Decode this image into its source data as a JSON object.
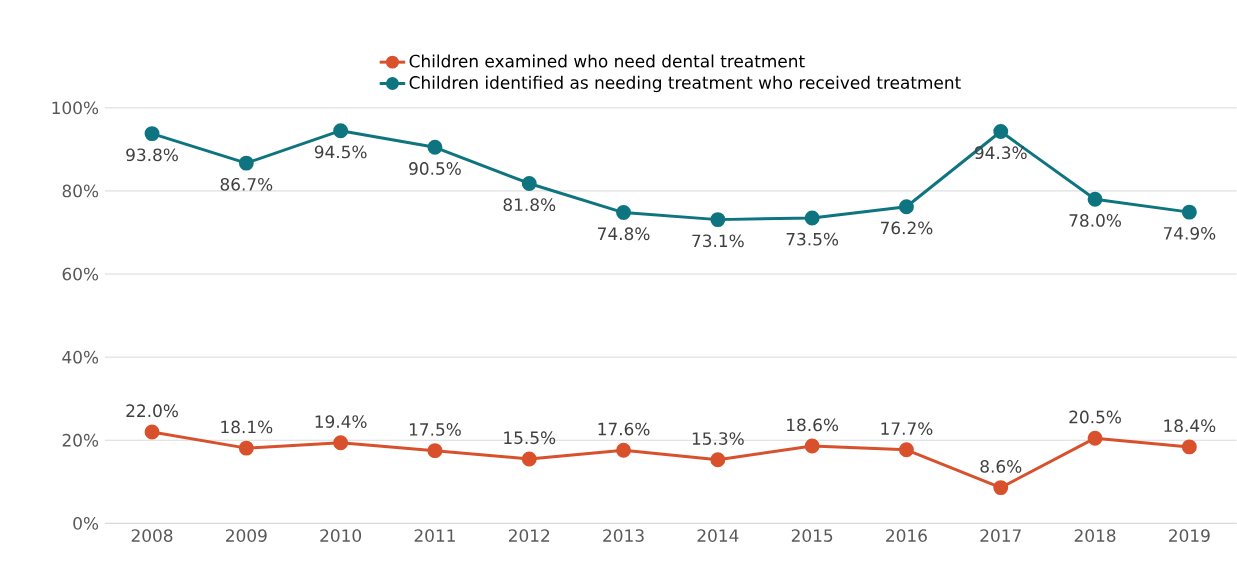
{
  "chart_data": {
    "type": "line",
    "categories": [
      "2008",
      "2009",
      "2010",
      "2011",
      "2012",
      "2013",
      "2014",
      "2015",
      "2016",
      "2017",
      "2018",
      "2019"
    ],
    "series": [
      {
        "name": "Children examined who need dental treatment",
        "color": "#d9512c",
        "values": [
          22.0,
          18.1,
          19.4,
          17.5,
          15.5,
          17.6,
          15.3,
          18.6,
          17.7,
          8.6,
          20.5,
          18.4
        ],
        "value_labels": [
          "22.0%",
          "18.1%",
          "19.4%",
          "17.5%",
          "15.5%",
          "17.6%",
          "15.3%",
          "18.6%",
          "17.7%",
          "8.6%",
          "20.5%",
          "18.4%"
        ]
      },
      {
        "name": "Children identified as needing treatment who received treatment",
        "color": "#0e7580",
        "values": [
          93.8,
          86.7,
          94.5,
          90.5,
          81.8,
          74.8,
          73.1,
          73.5,
          76.2,
          94.3,
          78.0,
          74.9
        ],
        "value_labels": [
          "93.8%",
          "86.7%",
          "94.5%",
          "90.5%",
          "81.8%",
          "74.8%",
          "73.1%",
          "73.5%",
          "76.2%",
          "94.3%",
          "78.0%",
          "74.9%"
        ]
      }
    ],
    "ylim": [
      0,
      100
    ],
    "yticks": [
      {
        "value": 0,
        "label": "0%"
      },
      {
        "value": 20,
        "label": "20%"
      },
      {
        "value": 40,
        "label": "40%"
      },
      {
        "value": 60,
        "label": "60%"
      },
      {
        "value": 80,
        "label": "80%"
      },
      {
        "value": 100,
        "label": "100%"
      }
    ],
    "grid": "y",
    "legend": "top",
    "marker": "circle",
    "line_style": "solid"
  }
}
